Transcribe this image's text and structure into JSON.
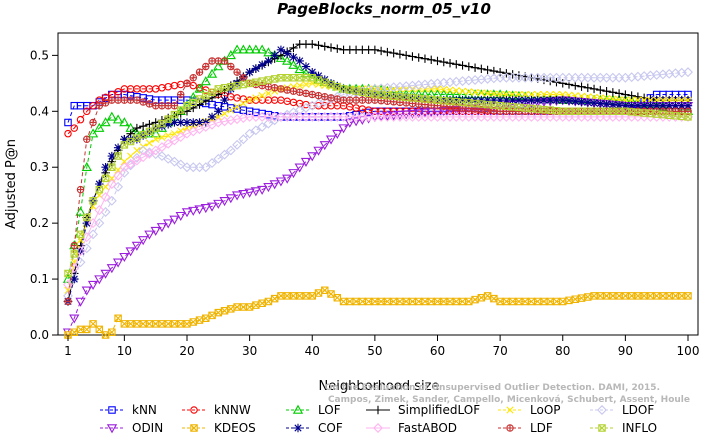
{
  "chart_data": {
    "type": "line",
    "title": "PageBlocks_norm_05_v10",
    "xlabel": "Neighborhood size",
    "ylabel": "Adjusted P@n",
    "xlim": [
      1,
      100
    ],
    "ylim": [
      0,
      0.54
    ],
    "xticks": [
      1,
      10,
      20,
      30,
      40,
      50,
      60,
      70,
      80,
      90,
      100
    ],
    "yticks": [
      0.0,
      0.1,
      0.2,
      0.3,
      0.4,
      0.5
    ],
    "ytick_labels": [
      "0.0",
      "0.1",
      "0.2",
      "0.3",
      "0.4",
      "0.5"
    ],
    "grid": false,
    "legend_position": "bottom",
    "watermark": [
      "Campos, Zimek, Sander, Campello, Micenková, Schubert, Assent, Houle",
      "On the Evaluation of Unsupervised Outlier Detection. DAMI, 2015."
    ],
    "series": [
      {
        "name": "kNN",
        "color": "#0000ff",
        "marker": "square",
        "dash": "4,3",
        "points": [
          [
            1,
            0.38
          ],
          [
            2,
            0.41
          ],
          [
            5,
            0.41
          ],
          [
            8,
            0.43
          ],
          [
            10,
            0.43
          ],
          [
            15,
            0.42
          ],
          [
            20,
            0.42
          ],
          [
            25,
            0.41
          ],
          [
            30,
            0.4
          ],
          [
            35,
            0.39
          ],
          [
            40,
            0.39
          ],
          [
            45,
            0.39
          ],
          [
            50,
            0.4
          ],
          [
            55,
            0.4
          ],
          [
            60,
            0.4
          ],
          [
            70,
            0.4
          ],
          [
            80,
            0.4
          ],
          [
            90,
            0.4
          ],
          [
            95,
            0.43
          ],
          [
            100,
            0.43
          ]
        ]
      },
      {
        "name": "kNNW",
        "color": "#ff0000",
        "marker": "circle",
        "dash": "4,3",
        "points": [
          [
            1,
            0.36
          ],
          [
            2,
            0.37
          ],
          [
            4,
            0.4
          ],
          [
            6,
            0.42
          ],
          [
            8,
            0.43
          ],
          [
            10,
            0.44
          ],
          [
            15,
            0.44
          ],
          [
            20,
            0.45
          ],
          [
            25,
            0.43
          ],
          [
            30,
            0.42
          ],
          [
            35,
            0.42
          ],
          [
            40,
            0.41
          ],
          [
            45,
            0.41
          ],
          [
            50,
            0.4
          ],
          [
            60,
            0.4
          ],
          [
            70,
            0.4
          ],
          [
            80,
            0.4
          ],
          [
            90,
            0.4
          ],
          [
            100,
            0.4
          ]
        ]
      },
      {
        "name": "LOF",
        "color": "#00cc00",
        "marker": "triangle",
        "dash": "4,3",
        "points": [
          [
            1,
            0.1
          ],
          [
            2,
            0.16
          ],
          [
            3,
            0.22
          ],
          [
            4,
            0.3
          ],
          [
            5,
            0.36
          ],
          [
            8,
            0.39
          ],
          [
            10,
            0.38
          ],
          [
            12,
            0.36
          ],
          [
            15,
            0.36
          ],
          [
            18,
            0.39
          ],
          [
            20,
            0.41
          ],
          [
            22,
            0.44
          ],
          [
            25,
            0.48
          ],
          [
            28,
            0.51
          ],
          [
            32,
            0.51
          ],
          [
            36,
            0.49
          ],
          [
            40,
            0.46
          ],
          [
            45,
            0.44
          ],
          [
            50,
            0.44
          ],
          [
            55,
            0.43
          ],
          [
            60,
            0.43
          ],
          [
            70,
            0.43
          ],
          [
            80,
            0.42
          ],
          [
            90,
            0.42
          ],
          [
            100,
            0.4
          ]
        ]
      },
      {
        "name": "SimplifiedLOF",
        "color": "#000000",
        "marker": "plus",
        "dash": "",
        "points": [
          [
            1,
            0.06
          ],
          [
            2,
            0.11
          ],
          [
            3,
            0.16
          ],
          [
            4,
            0.21
          ],
          [
            5,
            0.24
          ],
          [
            6,
            0.27
          ],
          [
            7,
            0.29
          ],
          [
            8,
            0.31
          ],
          [
            10,
            0.35
          ],
          [
            12,
            0.37
          ],
          [
            15,
            0.38
          ],
          [
            20,
            0.4
          ],
          [
            25,
            0.43
          ],
          [
            30,
            0.47
          ],
          [
            35,
            0.5
          ],
          [
            38,
            0.52
          ],
          [
            40,
            0.52
          ],
          [
            45,
            0.51
          ],
          [
            50,
            0.51
          ],
          [
            55,
            0.5
          ],
          [
            60,
            0.49
          ],
          [
            65,
            0.48
          ],
          [
            70,
            0.47
          ],
          [
            75,
            0.46
          ],
          [
            80,
            0.45
          ],
          [
            85,
            0.44
          ],
          [
            90,
            0.43
          ],
          [
            95,
            0.42
          ],
          [
            100,
            0.42
          ]
        ]
      },
      {
        "name": "LoOP",
        "color": "#ffe600",
        "marker": "x",
        "dash": "4,3",
        "points": [
          [
            1,
            0.08
          ],
          [
            2,
            0.13
          ],
          [
            3,
            0.17
          ],
          [
            4,
            0.2
          ],
          [
            5,
            0.23
          ],
          [
            6,
            0.25
          ],
          [
            8,
            0.28
          ],
          [
            10,
            0.31
          ],
          [
            12,
            0.33
          ],
          [
            15,
            0.35
          ],
          [
            18,
            0.36
          ],
          [
            20,
            0.37
          ],
          [
            25,
            0.39
          ],
          [
            30,
            0.42
          ],
          [
            35,
            0.44
          ],
          [
            40,
            0.45
          ],
          [
            45,
            0.44
          ],
          [
            50,
            0.44
          ],
          [
            60,
            0.44
          ],
          [
            70,
            0.43
          ],
          [
            80,
            0.43
          ],
          [
            90,
            0.42
          ],
          [
            100,
            0.42
          ]
        ]
      },
      {
        "name": "LDOF",
        "color": "#c8c8f0",
        "marker": "diamond",
        "dash": "4,3",
        "points": [
          [
            1,
            0.07
          ],
          [
            3,
            0.13
          ],
          [
            5,
            0.18
          ],
          [
            8,
            0.24
          ],
          [
            10,
            0.29
          ],
          [
            13,
            0.33
          ],
          [
            16,
            0.32
          ],
          [
            20,
            0.3
          ],
          [
            23,
            0.3
          ],
          [
            27,
            0.33
          ],
          [
            30,
            0.36
          ],
          [
            35,
            0.39
          ],
          [
            40,
            0.41
          ],
          [
            45,
            0.43
          ],
          [
            50,
            0.44
          ],
          [
            60,
            0.45
          ],
          [
            70,
            0.46
          ],
          [
            80,
            0.46
          ],
          [
            90,
            0.46
          ],
          [
            100,
            0.47
          ]
        ]
      },
      {
        "name": "ODIN",
        "color": "#9b1fdc",
        "marker": "triangle-down",
        "dash": "4,3",
        "points": [
          [
            1,
            0.005
          ],
          [
            2,
            0.03
          ],
          [
            3,
            0.06
          ],
          [
            4,
            0.08
          ],
          [
            6,
            0.1
          ],
          [
            8,
            0.12
          ],
          [
            10,
            0.14
          ],
          [
            12,
            0.16
          ],
          [
            14,
            0.18
          ],
          [
            17,
            0.2
          ],
          [
            20,
            0.22
          ],
          [
            24,
            0.23
          ],
          [
            28,
            0.25
          ],
          [
            32,
            0.26
          ],
          [
            36,
            0.28
          ],
          [
            40,
            0.32
          ],
          [
            43,
            0.35
          ],
          [
            46,
            0.38
          ],
          [
            50,
            0.39
          ],
          [
            60,
            0.4
          ],
          [
            70,
            0.41
          ],
          [
            80,
            0.42
          ],
          [
            90,
            0.41
          ],
          [
            100,
            0.41
          ]
        ]
      },
      {
        "name": "KDEOS",
        "color": "#f0b400",
        "marker": "square-x",
        "dash": "4,3",
        "points": [
          [
            1,
            0.0
          ],
          [
            2,
            0.005
          ],
          [
            3,
            0.01
          ],
          [
            4,
            0.01
          ],
          [
            5,
            0.02
          ],
          [
            6,
            0.01
          ],
          [
            7,
            0.0
          ],
          [
            8,
            0.005
          ],
          [
            9,
            0.03
          ],
          [
            10,
            0.02
          ],
          [
            12,
            0.02
          ],
          [
            15,
            0.02
          ],
          [
            18,
            0.02
          ],
          [
            20,
            0.02
          ],
          [
            23,
            0.03
          ],
          [
            25,
            0.04
          ],
          [
            28,
            0.05
          ],
          [
            30,
            0.05
          ],
          [
            33,
            0.06
          ],
          [
            35,
            0.07
          ],
          [
            38,
            0.07
          ],
          [
            40,
            0.07
          ],
          [
            42,
            0.08
          ],
          [
            45,
            0.06
          ],
          [
            48,
            0.06
          ],
          [
            50,
            0.06
          ],
          [
            55,
            0.06
          ],
          [
            60,
            0.06
          ],
          [
            65,
            0.06
          ],
          [
            68,
            0.07
          ],
          [
            70,
            0.06
          ],
          [
            75,
            0.06
          ],
          [
            80,
            0.06
          ],
          [
            85,
            0.07
          ],
          [
            90,
            0.07
          ],
          [
            95,
            0.07
          ],
          [
            100,
            0.07
          ]
        ]
      },
      {
        "name": "COF",
        "color": "#00008b",
        "marker": "asterisk",
        "dash": "4,3",
        "points": [
          [
            1,
            0.06
          ],
          [
            2,
            0.1
          ],
          [
            3,
            0.15
          ],
          [
            4,
            0.2
          ],
          [
            5,
            0.24
          ],
          [
            6,
            0.27
          ],
          [
            7,
            0.3
          ],
          [
            8,
            0.32
          ],
          [
            10,
            0.35
          ],
          [
            12,
            0.35
          ],
          [
            15,
            0.37
          ],
          [
            18,
            0.38
          ],
          [
            20,
            0.38
          ],
          [
            23,
            0.38
          ],
          [
            25,
            0.4
          ],
          [
            27,
            0.44
          ],
          [
            30,
            0.47
          ],
          [
            33,
            0.49
          ],
          [
            35,
            0.51
          ],
          [
            38,
            0.49
          ],
          [
            40,
            0.47
          ],
          [
            43,
            0.45
          ],
          [
            45,
            0.44
          ],
          [
            50,
            0.43
          ],
          [
            60,
            0.42
          ],
          [
            70,
            0.42
          ],
          [
            80,
            0.42
          ],
          [
            90,
            0.41
          ],
          [
            100,
            0.41
          ]
        ]
      },
      {
        "name": "FastABOD",
        "color": "#ffb6f0",
        "marker": "diamond",
        "dash": "",
        "points": [
          [
            1,
            0.09
          ],
          [
            3,
            0.15
          ],
          [
            5,
            0.2
          ],
          [
            8,
            0.27
          ],
          [
            10,
            0.3
          ],
          [
            15,
            0.33
          ],
          [
            20,
            0.36
          ],
          [
            25,
            0.38
          ],
          [
            30,
            0.39
          ],
          [
            40,
            0.39
          ],
          [
            50,
            0.39
          ],
          [
            60,
            0.39
          ],
          [
            70,
            0.39
          ],
          [
            80,
            0.39
          ],
          [
            90,
            0.39
          ],
          [
            100,
            0.39
          ]
        ]
      },
      {
        "name": "LDF",
        "color": "#c83232",
        "marker": "circle-plus",
        "dash": "4,3",
        "points": [
          [
            1,
            0.06
          ],
          [
            2,
            0.16
          ],
          [
            3,
            0.26
          ],
          [
            4,
            0.35
          ],
          [
            5,
            0.38
          ],
          [
            6,
            0.41
          ],
          [
            8,
            0.42
          ],
          [
            10,
            0.42
          ],
          [
            12,
            0.42
          ],
          [
            15,
            0.41
          ],
          [
            18,
            0.41
          ],
          [
            20,
            0.45
          ],
          [
            22,
            0.47
          ],
          [
            24,
            0.49
          ],
          [
            26,
            0.49
          ],
          [
            28,
            0.47
          ],
          [
            30,
            0.45
          ],
          [
            35,
            0.44
          ],
          [
            40,
            0.43
          ],
          [
            45,
            0.42
          ],
          [
            50,
            0.42
          ],
          [
            60,
            0.41
          ],
          [
            70,
            0.4
          ],
          [
            80,
            0.4
          ],
          [
            90,
            0.4
          ],
          [
            100,
            0.4
          ]
        ]
      },
      {
        "name": "INFLO",
        "color": "#b4d232",
        "marker": "square-x",
        "dash": "4,3",
        "points": [
          [
            1,
            0.11
          ],
          [
            3,
            0.18
          ],
          [
            5,
            0.24
          ],
          [
            8,
            0.3
          ],
          [
            10,
            0.34
          ],
          [
            15,
            0.37
          ],
          [
            20,
            0.41
          ],
          [
            25,
            0.44
          ],
          [
            30,
            0.45
          ],
          [
            35,
            0.46
          ],
          [
            40,
            0.46
          ],
          [
            45,
            0.44
          ],
          [
            50,
            0.43
          ],
          [
            60,
            0.42
          ],
          [
            70,
            0.41
          ],
          [
            80,
            0.4
          ],
          [
            90,
            0.4
          ],
          [
            100,
            0.39
          ]
        ]
      }
    ]
  }
}
